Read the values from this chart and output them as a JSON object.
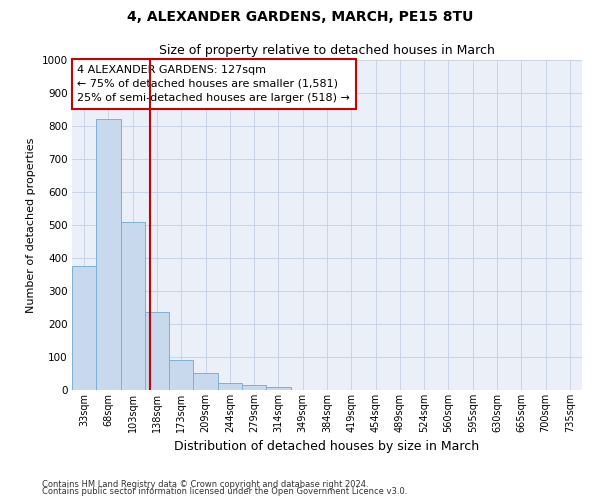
{
  "title1": "4, ALEXANDER GARDENS, MARCH, PE15 8TU",
  "title2": "Size of property relative to detached houses in March",
  "xlabel": "Distribution of detached houses by size in March",
  "ylabel": "Number of detached properties",
  "bin_labels": [
    "33sqm",
    "68sqm",
    "103sqm",
    "138sqm",
    "173sqm",
    "209sqm",
    "244sqm",
    "279sqm",
    "314sqm",
    "349sqm",
    "384sqm",
    "419sqm",
    "454sqm",
    "489sqm",
    "524sqm",
    "560sqm",
    "595sqm",
    "630sqm",
    "665sqm",
    "700sqm",
    "735sqm"
  ],
  "bar_values": [
    375,
    820,
    510,
    235,
    90,
    52,
    22,
    15,
    8,
    0,
    0,
    0,
    0,
    0,
    0,
    0,
    0,
    0,
    0,
    0,
    0
  ],
  "bar_color": "#c8d9ee",
  "bar_edge_color": "#7bafd4",
  "vline_pos": 2.72,
  "vline_color": "#cc0000",
  "annotation_text_line1": "4 ALEXANDER GARDENS: 127sqm",
  "annotation_text_line2": "← 75% of detached houses are smaller (1,581)",
  "annotation_text_line3": "25% of semi-detached houses are larger (518) →",
  "annotation_box_color": "#cc0000",
  "ylim": [
    0,
    1000
  ],
  "yticks": [
    0,
    100,
    200,
    300,
    400,
    500,
    600,
    700,
    800,
    900,
    1000
  ],
  "grid_color": "#c8d4e8",
  "bg_color": "#eaeff8",
  "footer1": "Contains HM Land Registry data © Crown copyright and database right 2024.",
  "footer2": "Contains public sector information licensed under the Open Government Licence v3.0."
}
